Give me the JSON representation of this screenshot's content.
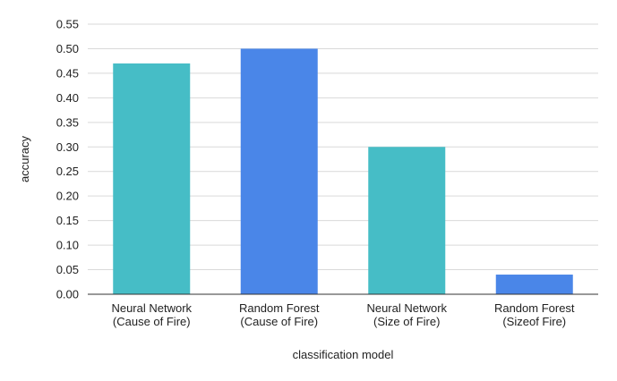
{
  "chart_data": {
    "type": "bar",
    "xlabel": "classification model",
    "ylabel": "accuracy",
    "ylim": [
      0,
      0.55
    ],
    "yticks": [
      "0.00",
      "0.05",
      "0.10",
      "0.15",
      "0.20",
      "0.25",
      "0.30",
      "0.35",
      "0.40",
      "0.45",
      "0.50",
      "0.55"
    ],
    "grid": true,
    "categories": [
      [
        "Neural Network",
        "(Cause of Fire)"
      ],
      [
        "Random Forest",
        "(Cause of Fire)"
      ],
      [
        "Neural Network",
        "(Size of Fire)"
      ],
      [
        "Random Forest",
        "(Sizeof Fire)"
      ]
    ],
    "values": [
      0.47,
      0.5,
      0.3,
      0.04
    ],
    "bar_colors": [
      "#46bdc6",
      "#4a86e8",
      "#46bdc6",
      "#4a86e8"
    ]
  }
}
